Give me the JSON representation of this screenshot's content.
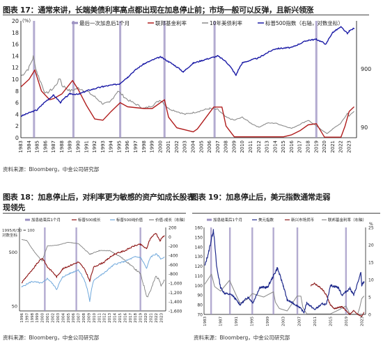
{
  "captions": {
    "fig17_title": "图表 17：通常来讲，长端美债利率高点都出现在加息停止前；市场一般可以反弹，且新兴领涨",
    "fig17_source": "资料来源：Bloomberg，中金公司研究部",
    "fig18_title_line1": "图表 18：加息停止后，对利率更为敏感的资产如成长股表",
    "fig18_title_line2": "现领先",
    "fig18_source": "资料来源：Bloomberg，中金公司研究部",
    "fig19_title": "图表 19：加息停止后，美元指数通常走弱",
    "fig19_source": "资料来源：Bloomberg，中金公司研究部"
  },
  "colors": {
    "hike_band": "#9a8fc0",
    "fed_funds": "#b01c1c",
    "ust10y": "#8a8a8a",
    "sp500": "#1a1aa6",
    "growth": "#8b1010",
    "value": "#6fa8dc",
    "spread": "#808080",
    "dollar": "#1f2a8c",
    "em_fx": "#8b1a1a",
    "fed2": "#888888"
  },
  "chart_data": [
    {
      "type": "line",
      "id": "fig17",
      "ylabel_left": "(%)",
      "ylim_left": [
        0,
        20
      ],
      "yticks_left": [
        "0",
        "2",
        "4",
        "6",
        "8",
        "10",
        "12",
        "14",
        "16",
        "18",
        "20"
      ],
      "yticks_right": [
        "90",
        "900"
      ],
      "right_axis_log": true,
      "xticks": [
        "1983",
        "1984",
        "1985",
        "1986",
        "1987",
        "1988",
        "1989",
        "1990",
        "1991",
        "1992",
        "1993",
        "1994",
        "1995",
        "1996",
        "1997",
        "1998",
        "1999",
        "2000",
        "2001",
        "2002",
        "2003",
        "2004",
        "2005",
        "2006",
        "2007",
        "2008",
        "2009",
        "2010",
        "2011",
        "2012",
        "2013",
        "2014",
        "2015",
        "2016",
        "2017",
        "2018",
        "2019",
        "2020",
        "2021",
        "2022",
        "2023"
      ],
      "legend": [
        "最后一次加息后1个月",
        "联邦基金利率",
        "10年美债利率",
        "标普500指数（右轴，对数坐标）"
      ],
      "hike_end_markers": [
        1984.6,
        1989.4,
        1995.1,
        2000.5,
        2006.6,
        2019.0
      ],
      "series": [
        {
          "name": "联邦基金利率",
          "x": [
            1983,
            1984,
            1984.7,
            1985.5,
            1986.5,
            1987,
            1988,
            1989.3,
            1990,
            1991,
            1992,
            1993,
            1994,
            1995.1,
            1996,
            1998,
            1999,
            2000.5,
            2001,
            2002,
            2004,
            2004.5,
            2006.5,
            2007.5,
            2008,
            2009,
            2015,
            2016,
            2017,
            2018,
            2019,
            2020,
            2022,
            2022.5,
            2023,
            2023.6
          ],
          "y": [
            8.7,
            10,
            11.6,
            8,
            6.5,
            6.7,
            7.5,
            9.8,
            8.2,
            5.5,
            3.2,
            3,
            4.5,
            6,
            5.3,
            5,
            5,
            6.5,
            3.5,
            1.7,
            1,
            1.5,
            5.25,
            5.25,
            2,
            0.15,
            0.15,
            0.5,
            1.2,
            2.2,
            2.4,
            0.1,
            0.1,
            2,
            4.5,
            5.3
          ]
        },
        {
          "name": "10年美债利率",
          "x": [
            1983,
            1984,
            1984.5,
            1985,
            1986,
            1987,
            1987.8,
            1988,
            1989,
            1990,
            1991,
            1992,
            1993,
            1993.8,
            1994.8,
            1996,
            1998,
            1999,
            2000,
            2001,
            2002,
            2003,
            2004,
            2006,
            2007,
            2008,
            2009,
            2010,
            2011,
            2012,
            2013,
            2014,
            2016,
            2018,
            2019,
            2020.3,
            2021,
            2022,
            2022.8,
            2023,
            2023.6
          ],
          "y": [
            10.5,
            12,
            13.8,
            11,
            7.5,
            8.5,
            10.2,
            9,
            8,
            8.5,
            8,
            7,
            5.8,
            6,
            8,
            6.5,
            5,
            5.5,
            6.5,
            5,
            4.5,
            4,
            4.3,
            5,
            4.8,
            3.5,
            3,
            3.5,
            2.5,
            1.8,
            2.5,
            2.5,
            1.6,
            3,
            2,
            0.7,
            1.5,
            2.5,
            4.2,
            3.7,
            4.5
          ]
        },
        {
          "name": "标普500指数（右轴，对数坐标）",
          "x": [
            1983,
            1985,
            1987,
            1987.8,
            1989,
            1990,
            1991,
            1993,
            1995,
            1996,
            1998,
            2000,
            2001,
            2002.8,
            2004,
            2007,
            2008,
            2009.2,
            2010,
            2012,
            2014,
            2016,
            2018,
            2019,
            2020.2,
            2021,
            2022,
            2022.8,
            2023,
            2023.6
          ],
          "y": [
            140,
            180,
            320,
            240,
            340,
            330,
            380,
            450,
            500,
            650,
            1100,
            1450,
            1200,
            800,
            1130,
            1500,
            1200,
            700,
            1150,
            1400,
            2000,
            2100,
            2800,
            2900,
            2400,
            3800,
            4700,
            3600,
            4000,
            4500
          ]
        }
      ]
    },
    {
      "type": "line",
      "id": "fig18",
      "ylabel_left": "1995/6/30 = 100\n对数坐标",
      "yticks_left": [
        "50",
        "500"
      ],
      "yticks_right": [
        "200",
        "0",
        "-200",
        "-400",
        "-600",
        "-800",
        "-1,000",
        "-1,200",
        "-1,400",
        "-1,600"
      ],
      "ylim_right": [
        -1600,
        200
      ],
      "xticks": [
        "1996",
        "1997",
        "1998",
        "1999",
        "2000",
        "2001",
        "2002",
        "2003",
        "2004",
        "2005",
        "2006",
        "2007",
        "2008",
        "2009",
        "2010",
        "2011",
        "2012",
        "2013",
        "2014",
        "2015",
        "2016",
        "2017",
        "2018",
        "2019",
        "2020",
        "2021",
        "2022",
        "2023"
      ],
      "legend": [
        "加息结束后1个月",
        "标普500成长",
        "标普500纯价值",
        "价值-成长（右轴）"
      ],
      "hike_end_markers": [
        2000.5,
        2006.6,
        2019.0
      ],
      "series": [
        {
          "name": "标普500成长",
          "x": [
            1996,
            1998,
            2000,
            2001,
            2002.8,
            2004,
            2007,
            2008,
            2009.2,
            2010,
            2012,
            2014,
            2016,
            2018,
            2019,
            2020.2,
            2021,
            2022,
            2022.8,
            2023,
            2023.6
          ],
          "y": [
            130,
            220,
            380,
            260,
            170,
            240,
            320,
            250,
            140,
            260,
            320,
            450,
            520,
            650,
            680,
            560,
            900,
            1100,
            780,
            850,
            1000
          ]
        },
        {
          "name": "标普500纯价值",
          "x": [
            1996,
            1998,
            2000,
            2001,
            2002.8,
            2004,
            2007,
            2008,
            2009.2,
            2010,
            2012,
            2014,
            2016,
            2018,
            2019,
            2020.2,
            2021,
            2022,
            2022.8,
            2023,
            2023.6
          ],
          "y": [
            110,
            140,
            130,
            160,
            100,
            170,
            230,
            160,
            60,
            150,
            200,
            290,
            330,
            400,
            390,
            240,
            400,
            450,
            390,
            360,
            400
          ]
        },
        {
          "name": "价值-成长（右轴）",
          "x": [
            1996,
            1997,
            1998,
            1999,
            2000,
            2001,
            2003,
            2005,
            2007,
            2008,
            2009.2,
            2011,
            2013,
            2015,
            2017,
            2019,
            2020.3,
            2021,
            2022,
            2022.8,
            2023,
            2023.6
          ],
          "y": [
            -60,
            -80,
            -250,
            -400,
            -520,
            -200,
            -180,
            -120,
            -150,
            -250,
            -380,
            -300,
            -300,
            -420,
            -600,
            -800,
            -1300,
            -1150,
            -850,
            -950,
            -1050,
            -950
          ]
        }
      ]
    },
    {
      "type": "line",
      "id": "fig19",
      "yticks_left": [
        "70",
        "80",
        "90",
        "100",
        "110",
        "120",
        "130",
        "140",
        "150",
        "160"
      ],
      "ylim_left": [
        70,
        160
      ],
      "yticks_right": [
        "0",
        "5",
        "10",
        "15",
        "20",
        "25"
      ],
      "ylim_right": [
        0,
        25
      ],
      "ylabel_right": "%",
      "xticks": [
        "1983",
        "1987",
        "1991",
        "1995",
        "1999",
        "2003",
        "2007",
        "2011",
        "2015",
        "2019",
        "2023"
      ],
      "legend": [
        "加息结束后1个月",
        "美元指数",
        "新兴市场货币",
        "联邦基金利率（右轴）"
      ],
      "hike_end_markers": [
        1984.6,
        1989.4,
        1995.1,
        2000.5,
        2006.6,
        2019.0
      ],
      "series": [
        {
          "name": "美元指数",
          "x": [
            1983,
            1984,
            1985.2,
            1986,
            1987,
            1988,
            1990,
            1992,
            1994,
            1995.3,
            1997,
            1999,
            2001.5,
            2003,
            2004,
            2007,
            2008.3,
            2009,
            2011,
            2013,
            2014,
            2015,
            2017,
            2018,
            2020,
            2021,
            2022.8,
            2023,
            2023.6
          ],
          "y": [
            120,
            135,
            158,
            120,
            98,
            92,
            90,
            80,
            88,
            82,
            98,
            98,
            118,
            100,
            85,
            78,
            72,
            82,
            75,
            81,
            80,
            100,
            98,
            90,
            97,
            90,
            113,
            100,
            104
          ]
        },
        {
          "name": "新兴市场货币",
          "x": [
            2010,
            2011,
            2013,
            2014,
            2015,
            2016,
            2018,
            2019,
            2020,
            2021,
            2022,
            2023,
            2023.6
          ],
          "y": [
            100,
            102,
            96,
            90,
            80,
            76,
            78,
            74,
            70,
            74,
            70,
            68,
            72
          ]
        },
        {
          "name": "联邦基金利率（右轴）",
          "x": [
            1983,
            1984.7,
            1985.5,
            1987,
            1989.3,
            1991,
            1992,
            1994,
            1995.1,
            1998,
            2000.5,
            2001,
            2002,
            2004,
            2006.5,
            2007.5,
            2008,
            2009,
            2015,
            2017,
            2019,
            2020,
            2022,
            2022.5,
            2023,
            2023.6
          ],
          "y": [
            8.7,
            11.6,
            8,
            6.7,
            9.8,
            5.5,
            3.2,
            4.5,
            6,
            5,
            6.5,
            3.5,
            1.7,
            1,
            5.25,
            5.25,
            2,
            0.15,
            0.15,
            1.2,
            2.4,
            0.1,
            0.1,
            2,
            4.5,
            5.3
          ]
        }
      ]
    }
  ]
}
